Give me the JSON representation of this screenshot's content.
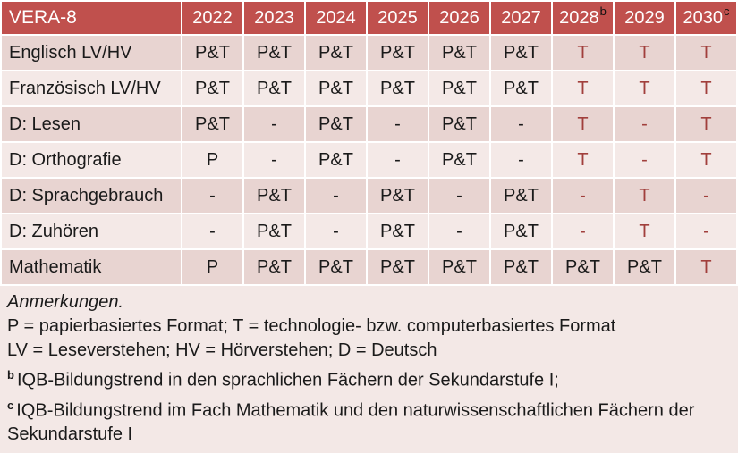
{
  "colors": {
    "header_bg": "#C0504D",
    "band_dark": "#E8D4D1",
    "band_light": "#F4E9E7",
    "notes_bg": "#F3E8E6",
    "red_text": "#A13F3C"
  },
  "table": {
    "title": "VERA-8",
    "years": [
      {
        "label": "2022",
        "sup": ""
      },
      {
        "label": "2023",
        "sup": ""
      },
      {
        "label": "2024",
        "sup": ""
      },
      {
        "label": "2025",
        "sup": ""
      },
      {
        "label": "2026",
        "sup": ""
      },
      {
        "label": "2027",
        "sup": ""
      },
      {
        "label": "2028",
        "sup": "b"
      },
      {
        "label": "2029",
        "sup": ""
      },
      {
        "label": "2030",
        "sup": "c"
      }
    ],
    "rows": [
      {
        "label": "Englisch LV/HV",
        "values": [
          "P&T",
          "P&T",
          "P&T",
          "P&T",
          "P&T",
          "P&T",
          "T",
          "T",
          "T"
        ],
        "red": [
          false,
          false,
          false,
          false,
          false,
          false,
          true,
          true,
          true
        ]
      },
      {
        "label": "Französisch LV/HV",
        "values": [
          "P&T",
          "P&T",
          "P&T",
          "P&T",
          "P&T",
          "P&T",
          "T",
          "T",
          "T"
        ],
        "red": [
          false,
          false,
          false,
          false,
          false,
          false,
          true,
          true,
          true
        ]
      },
      {
        "label": "D: Lesen",
        "values": [
          "P&T",
          "-",
          "P&T",
          "-",
          "P&T",
          "-",
          "T",
          "-",
          "T"
        ],
        "red": [
          false,
          false,
          false,
          false,
          false,
          false,
          true,
          true,
          true
        ]
      },
      {
        "label": "D: Orthografie",
        "values": [
          "P",
          "-",
          "P&T",
          "-",
          "P&T",
          "-",
          "T",
          "-",
          "T"
        ],
        "red": [
          false,
          false,
          false,
          false,
          false,
          false,
          true,
          true,
          true
        ]
      },
      {
        "label": "D: Sprachgebrauch",
        "values": [
          "-",
          "P&T",
          "-",
          "P&T",
          "-",
          "P&T",
          "-",
          "T",
          "-"
        ],
        "red": [
          false,
          false,
          false,
          false,
          false,
          false,
          true,
          true,
          true
        ]
      },
      {
        "label": "D: Zuhören",
        "values": [
          "-",
          "P&T",
          "-",
          "P&T",
          "-",
          "P&T",
          "-",
          "T",
          "-"
        ],
        "red": [
          false,
          false,
          false,
          false,
          false,
          false,
          true,
          true,
          true
        ]
      },
      {
        "label": "Mathematik",
        "values": [
          "P",
          "P&T",
          "P&T",
          "P&T",
          "P&T",
          "P&T",
          "P&T",
          "P&T",
          "T"
        ],
        "red": [
          false,
          false,
          false,
          false,
          false,
          false,
          false,
          false,
          true
        ]
      }
    ]
  },
  "notes": {
    "heading": "Anmerkungen.",
    "lines": [
      {
        "sup": "",
        "text": "P = papierbasiertes Format; T = technologie- bzw. computerbasiertes Format"
      },
      {
        "sup": "",
        "text": "LV = Leseverstehen; HV = Hörverstehen; D = Deutsch"
      },
      {
        "sup": "b",
        "text": "IQB-Bildungstrend in den sprachlichen Fächern der Sekundarstufe I;"
      },
      {
        "sup": "c",
        "text": "IQB-Bildungstrend im Fach Mathematik und den naturwissenschaftlichen Fächern der Sekundarstufe I"
      }
    ]
  }
}
